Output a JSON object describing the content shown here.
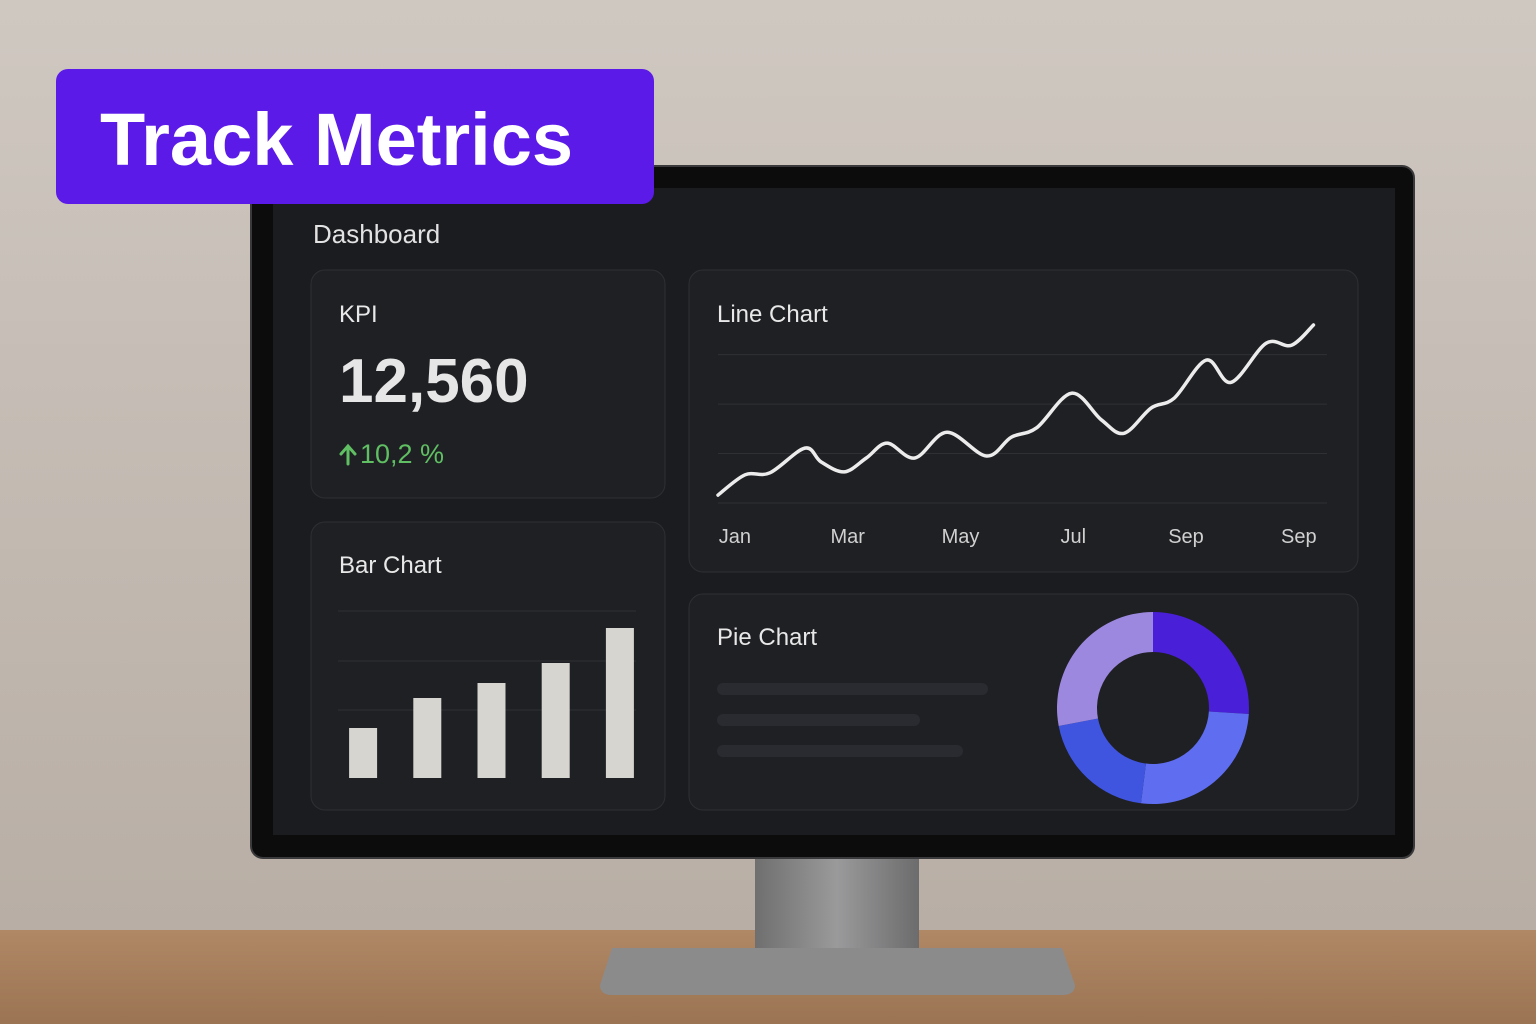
{
  "header": {
    "title": "Track Metrics"
  },
  "dashboard": {
    "title": "Dashboard"
  },
  "kpi": {
    "label": "KPI",
    "value": "12,560",
    "change": "10,2 %"
  },
  "chart_data": [
    {
      "type": "line",
      "title": "Line Chart",
      "color": "#ececec",
      "x": [
        -0.3,
        0.18,
        0.62,
        1.24,
        1.53,
        1.94,
        2.33,
        2.7,
        3.19,
        3.76,
        4.46,
        4.9,
        5.35,
        5.97,
        6.5,
        6.9,
        7.38,
        7.79,
        8.36,
        8.8,
        9.42,
        9.87,
        10.26
      ],
      "values": [
        0.16,
        0.57,
        0.61,
        1.11,
        0.83,
        0.63,
        0.91,
        1.21,
        0.91,
        1.43,
        0.95,
        1.33,
        1.52,
        2.22,
        1.68,
        1.41,
        1.92,
        2.12,
        2.89,
        2.44,
        3.23,
        3.19,
        3.6
      ],
      "xlim": [
        -0.3,
        10.5
      ],
      "ylim": [
        0,
        3.6
      ],
      "xticks": [
        {
          "value": 0,
          "label": "Jan"
        },
        {
          "value": 2,
          "label": "Mar"
        },
        {
          "value": 4,
          "label": "May"
        },
        {
          "value": 6,
          "label": "Jul"
        },
        {
          "value": 8,
          "label": "Sep"
        },
        {
          "value": 10,
          "label": "Sep"
        }
      ],
      "gridlines": [
        0,
        1,
        2,
        3
      ]
    },
    {
      "type": "bar",
      "title": "Bar Chart",
      "color": "#d6d5d0",
      "values": [
        50,
        80,
        95,
        115,
        150
      ],
      "ylim": [
        0,
        167
      ],
      "gridlines": [
        68,
        117,
        167
      ]
    },
    {
      "type": "donut",
      "title": "Pie Chart",
      "values": [
        26,
        26,
        20,
        28
      ],
      "colors": [
        "#4a1fd8",
        "#5f6ef0",
        "#3f55e0",
        "#9d88e0"
      ]
    }
  ]
}
